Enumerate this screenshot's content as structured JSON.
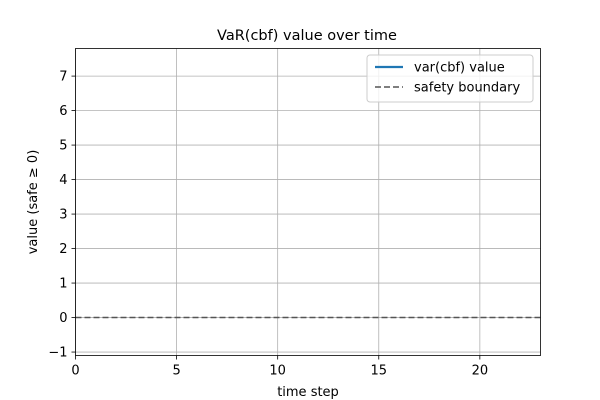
{
  "chart_data": {
    "type": "line",
    "title": "VaR(cbf) value over time",
    "xlabel": "time step",
    "ylabel": "value (safe ≥ 0)",
    "xlim": [
      0,
      23
    ],
    "ylim": [
      -1.1,
      7.8
    ],
    "xticks": [
      0,
      5,
      10,
      15,
      20
    ],
    "yticks": [
      -1,
      0,
      1,
      2,
      3,
      4,
      5,
      6,
      7
    ],
    "grid": true,
    "legend_position": "top-right",
    "series": [
      {
        "name": "var(cbf) value",
        "style": "solid",
        "color": "#1f77b4",
        "x": [],
        "y": []
      },
      {
        "name": "safety boundary",
        "style": "dashed",
        "color": "#555555",
        "y_constant": 0
      }
    ]
  }
}
